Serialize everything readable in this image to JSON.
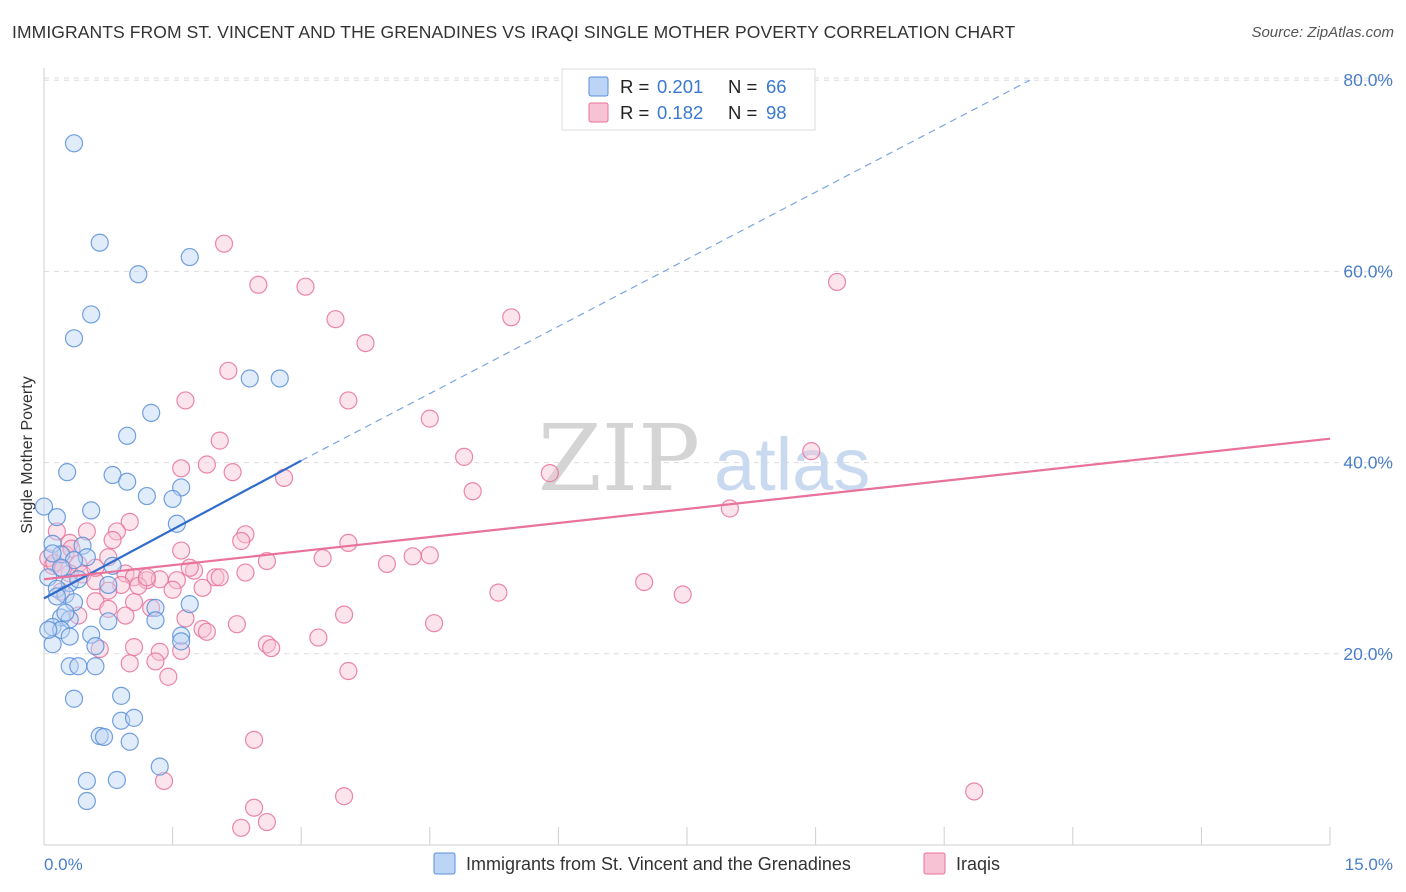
{
  "chart_data": {
    "type": "scatter",
    "title": "IMMIGRANTS FROM ST. VINCENT AND THE GRENADINES VS IRAQI SINGLE MOTHER POVERTY CORRELATION CHART",
    "source": "Source: ZipAtlas.com",
    "ylabel": "Single Mother Poverty",
    "xlim": [
      0,
      15
    ],
    "ylim": [
      0,
      85
    ],
    "x_ticks": {
      "min_label": "0.0%",
      "max_label": "15.0%"
    },
    "y_ticks": [
      {
        "value": 20,
        "label": "20.0%"
      },
      {
        "value": 40,
        "label": "40.0%"
      },
      {
        "value": 60,
        "label": "60.0%"
      },
      {
        "value": 80,
        "label": "80.0%"
      }
    ],
    "watermark": {
      "zip": "ZIP",
      "atlas": "atlas"
    },
    "colors": {
      "blue": "#5b8fd9",
      "blue_fill": "#bcd4f5",
      "pink": "#e8729b",
      "pink_fill": "#f7c3d4",
      "axis_text": "#4a7ec8"
    },
    "legend": [
      {
        "r_label": "R = ",
        "r_value": "0.201",
        "n_label": "N = ",
        "n_value": "66"
      },
      {
        "r_label": "R = ",
        "r_value": "0.182",
        "n_label": "N = ",
        "n_value": "98"
      }
    ],
    "series": [
      {
        "name": "Immigrants from St. Vincent and the Grenadines",
        "trend": {
          "x0": 0,
          "y0": 25.8,
          "x1": 3.0,
          "y1": 40.2,
          "dash_x1": 11.5,
          "dash_y1": 80.0
        },
        "points": [
          [
            0.35,
            73.4
          ],
          [
            0.65,
            63.0
          ],
          [
            1.1,
            59.7
          ],
          [
            1.7,
            61.5
          ],
          [
            0.55,
            55.5
          ],
          [
            0.35,
            53.0
          ],
          [
            2.4,
            48.8
          ],
          [
            2.75,
            48.8
          ],
          [
            1.25,
            45.2
          ],
          [
            0.97,
            42.8
          ],
          [
            0.27,
            39.0
          ],
          [
            0.8,
            38.7
          ],
          [
            0.97,
            38.0
          ],
          [
            1.6,
            37.4
          ],
          [
            1.2,
            36.5
          ],
          [
            1.5,
            36.2
          ],
          [
            0.0,
            35.4
          ],
          [
            0.55,
            35.0
          ],
          [
            0.15,
            34.3
          ],
          [
            1.55,
            33.6
          ],
          [
            0.1,
            31.5
          ],
          [
            0.45,
            31.3
          ],
          [
            0.2,
            30.4
          ],
          [
            0.5,
            30.1
          ],
          [
            0.35,
            29.8
          ],
          [
            0.8,
            29.2
          ],
          [
            0.05,
            28.0
          ],
          [
            0.3,
            27.4
          ],
          [
            0.75,
            27.2
          ],
          [
            0.15,
            26.8
          ],
          [
            0.25,
            26.2
          ],
          [
            0.35,
            25.4
          ],
          [
            1.7,
            25.2
          ],
          [
            1.3,
            24.8
          ],
          [
            0.2,
            23.8
          ],
          [
            0.3,
            23.6
          ],
          [
            0.75,
            23.4
          ],
          [
            1.3,
            23.5
          ],
          [
            0.1,
            22.8
          ],
          [
            0.2,
            22.5
          ],
          [
            0.55,
            22.0
          ],
          [
            0.3,
            21.8
          ],
          [
            1.6,
            21.9
          ],
          [
            1.6,
            21.3
          ],
          [
            0.1,
            21.0
          ],
          [
            0.6,
            20.8
          ],
          [
            0.3,
            18.7
          ],
          [
            0.4,
            18.7
          ],
          [
            0.6,
            18.7
          ],
          [
            0.35,
            15.3
          ],
          [
            0.9,
            15.6
          ],
          [
            0.9,
            13.0
          ],
          [
            1.05,
            13.3
          ],
          [
            0.65,
            11.4
          ],
          [
            0.7,
            11.3
          ],
          [
            1.0,
            10.8
          ],
          [
            0.5,
            6.7
          ],
          [
            0.85,
            6.8
          ],
          [
            1.35,
            8.2
          ],
          [
            0.5,
            4.6
          ],
          [
            0.05,
            22.5
          ],
          [
            0.2,
            29.0
          ],
          [
            0.1,
            30.5
          ],
          [
            0.4,
            27.8
          ],
          [
            0.25,
            24.3
          ],
          [
            0.15,
            26.0
          ]
        ]
      },
      {
        "name": "Iraqis",
        "trend": {
          "x0": 0,
          "y0": 27.8,
          "x1": 15.0,
          "y1": 42.5
        },
        "points": [
          [
            2.1,
            62.9
          ],
          [
            2.5,
            58.6
          ],
          [
            3.05,
            58.4
          ],
          [
            5.45,
            55.2
          ],
          [
            9.25,
            58.9
          ],
          [
            3.4,
            55.0
          ],
          [
            3.75,
            52.5
          ],
          [
            2.15,
            49.6
          ],
          [
            1.65,
            46.5
          ],
          [
            3.55,
            46.5
          ],
          [
            4.5,
            44.6
          ],
          [
            2.05,
            42.3
          ],
          [
            4.9,
            40.6
          ],
          [
            8.95,
            41.2
          ],
          [
            1.6,
            39.4
          ],
          [
            1.9,
            39.8
          ],
          [
            2.2,
            39.0
          ],
          [
            2.8,
            38.4
          ],
          [
            5.9,
            38.9
          ],
          [
            5.0,
            37.0
          ],
          [
            8.0,
            35.2
          ],
          [
            1.0,
            33.8
          ],
          [
            0.85,
            32.8
          ],
          [
            0.5,
            32.8
          ],
          [
            0.15,
            32.8
          ],
          [
            2.35,
            32.5
          ],
          [
            2.3,
            31.8
          ],
          [
            3.55,
            31.6
          ],
          [
            0.8,
            31.9
          ],
          [
            0.3,
            31.6
          ],
          [
            1.6,
            30.8
          ],
          [
            0.25,
            30.4
          ],
          [
            4.5,
            30.3
          ],
          [
            4.3,
            30.2
          ],
          [
            0.75,
            30.1
          ],
          [
            2.6,
            29.7
          ],
          [
            4.0,
            29.4
          ],
          [
            0.4,
            29.4
          ],
          [
            0.1,
            29.2
          ],
          [
            1.75,
            28.7
          ],
          [
            0.3,
            28.4
          ],
          [
            0.45,
            28.3
          ],
          [
            0.95,
            28.4
          ],
          [
            1.05,
            28.0
          ],
          [
            1.2,
            27.7
          ],
          [
            1.35,
            27.8
          ],
          [
            1.55,
            27.7
          ],
          [
            2.0,
            28.0
          ],
          [
            2.05,
            28.0
          ],
          [
            0.6,
            27.6
          ],
          [
            0.9,
            27.2
          ],
          [
            1.1,
            27.1
          ],
          [
            1.85,
            26.9
          ],
          [
            1.5,
            26.7
          ],
          [
            0.75,
            26.6
          ],
          [
            5.3,
            26.4
          ],
          [
            0.6,
            25.5
          ],
          [
            1.05,
            25.4
          ],
          [
            7.0,
            27.5
          ],
          [
            7.45,
            26.2
          ],
          [
            0.75,
            24.7
          ],
          [
            1.25,
            24.8
          ],
          [
            3.5,
            24.1
          ],
          [
            0.95,
            24.0
          ],
          [
            0.4,
            24.0
          ],
          [
            1.65,
            23.7
          ],
          [
            1.85,
            22.6
          ],
          [
            1.9,
            22.3
          ],
          [
            2.25,
            23.1
          ],
          [
            4.55,
            23.2
          ],
          [
            3.2,
            21.7
          ],
          [
            2.6,
            21.0
          ],
          [
            2.65,
            20.6
          ],
          [
            1.05,
            20.7
          ],
          [
            1.6,
            20.3
          ],
          [
            0.65,
            20.5
          ],
          [
            1.35,
            20.2
          ],
          [
            1.0,
            19.0
          ],
          [
            1.3,
            19.2
          ],
          [
            3.55,
            18.2
          ],
          [
            1.45,
            17.6
          ],
          [
            2.45,
            11.0
          ],
          [
            1.4,
            6.7
          ],
          [
            3.5,
            5.1
          ],
          [
            10.85,
            5.6
          ],
          [
            2.45,
            3.9
          ],
          [
            2.6,
            2.4
          ],
          [
            2.3,
            1.8
          ],
          [
            0.05,
            30.0
          ],
          [
            0.12,
            29.5
          ],
          [
            0.22,
            28.9
          ],
          [
            0.32,
            31.0
          ],
          [
            0.6,
            29.0
          ],
          [
            0.2,
            26.5
          ],
          [
            1.2,
            28.0
          ],
          [
            1.7,
            29.0
          ],
          [
            2.35,
            28.5
          ],
          [
            3.25,
            30.0
          ]
        ]
      }
    ]
  }
}
